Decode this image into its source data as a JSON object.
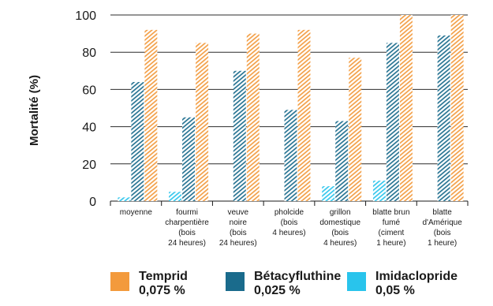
{
  "chart_data": {
    "type": "bar",
    "ylabel": "Mortalité (%)",
    "ylim": [
      0,
      100
    ],
    "yticks": [
      0,
      20,
      40,
      60,
      80,
      100
    ],
    "grid": true,
    "legend_position": "bottom",
    "categories": [
      [
        "moyenne"
      ],
      [
        "fourmi",
        "charpentière",
        "(bois",
        "24 heures)"
      ],
      [
        "veuve",
        "noire",
        "(bois",
        "24 heures)"
      ],
      [
        "pholcide",
        "(bois",
        "4 heures)"
      ],
      [
        "grillon",
        "domestique",
        "(bois",
        "4 heures)"
      ],
      [
        "blatte brun",
        "fumé",
        "(ciment",
        "1 heure)"
      ],
      [
        "blatte",
        "d'Amérique",
        "(bois",
        "1 heure)"
      ]
    ],
    "series": [
      {
        "name": "Imidaclopride",
        "legend_lines": [
          "Imidaclopride",
          "0,05 %"
        ],
        "color": "#29c4ec",
        "values": [
          2,
          5,
          0,
          0,
          8,
          11,
          0
        ]
      },
      {
        "name": "Bétacyfluthine",
        "legend_lines": [
          "Bétacyfluthine",
          "0,025 %"
        ],
        "color": "#1a6b8c",
        "values": [
          64,
          45,
          70,
          49,
          43,
          85,
          89
        ]
      },
      {
        "name": "Temprid",
        "legend_lines": [
          "Temprid",
          "0,075 %"
        ],
        "color": "#f39a3c",
        "values": [
          92,
          85,
          90,
          92,
          77,
          100,
          100
        ]
      }
    ],
    "legend_order": [
      "Temprid",
      "Bétacyfluthine",
      "Imidaclopride"
    ]
  }
}
